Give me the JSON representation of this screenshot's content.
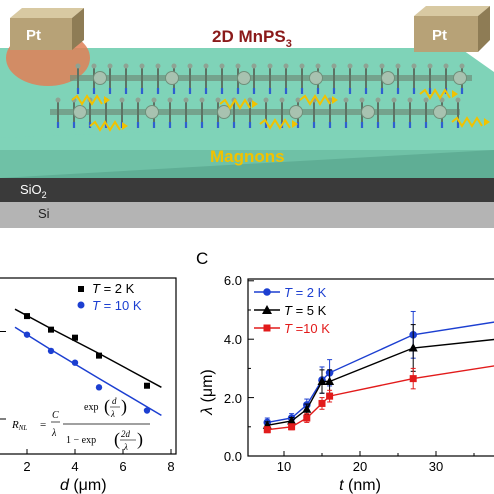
{
  "panel_top": {
    "title_main": "2D MnPS",
    "title_sub": "3",
    "pt_left": "Pt",
    "pt_right": "Pt",
    "magnons": "Magnons",
    "sio2_main": "SiO",
    "sio2_sub": "2",
    "si": "Si"
  },
  "panel_b": {
    "legend": [
      {
        "prefix": "T",
        "text": " =  2 K"
      },
      {
        "prefix": "T",
        "text": " = 10 K"
      }
    ],
    "formula": {
      "lhs": "R",
      "lhs_sub": "NL",
      "num_C": "C",
      "den_lambda": "λ",
      "exp1": "exp",
      "frac1_num": "d",
      "frac1_den": "λ",
      "one_minus": "1 − exp",
      "frac2_num": "2d",
      "frac2_den": "λ",
      "eq": "="
    },
    "x_ticks": [
      "2",
      "4",
      "6",
      "8"
    ],
    "xlabel_var": "d",
    "xlabel_unit": " (μm)"
  },
  "panel_c": {
    "label": "C",
    "ylabel_var": "λ",
    "ylabel_unit": " (μm)",
    "xlabel_var": "t",
    "xlabel_unit": " (nm)"
  },
  "colors": {
    "black": "#000000",
    "blue": "#1c3fd1",
    "red": "#e21b1b",
    "title": "#8b1a1a",
    "magnons": "#f2c200",
    "substrate_green": "#7fd3b8",
    "sio2": "#3a3a3a",
    "si": "#b4b4b4",
    "pt": "#b7a277"
  },
  "chart_data": [
    {
      "type": "scatter",
      "panel": "B",
      "xlabel": "d (μm)",
      "ylabel": "",
      "xlim": [
        1,
        8.3
      ],
      "ylim_log": [
        -0.4,
        1.6
      ],
      "x_ticks": [
        2,
        4,
        6,
        8
      ],
      "series": [
        {
          "name": "T = 2 K",
          "color": "#000000",
          "marker": "square",
          "x": [
            2,
            3,
            4,
            5,
            7
          ],
          "y": [
            15,
            10.5,
            8.5,
            5.3,
            2.4
          ],
          "fit": [
            [
              1.5,
              18.0
            ],
            [
              3,
              10.8
            ],
            [
              5,
              5.6
            ],
            [
              7.6,
              2.3
            ]
          ]
        },
        {
          "name": "T = 10 K",
          "color": "#1c3fd1",
          "marker": "circle",
          "x": [
            2,
            3,
            4,
            5,
            7
          ],
          "y": [
            9.2,
            6.0,
            4.4,
            2.3,
            1.25
          ],
          "fit": [
            [
              1.5,
              11.2
            ],
            [
              3,
              6.2
            ],
            [
              5,
              2.9
            ],
            [
              7.6,
              1.1
            ]
          ]
        }
      ]
    },
    {
      "type": "line",
      "panel": "C",
      "xlabel": "t (nm)",
      "ylabel": "λ (μm)",
      "xlim": [
        5,
        38
      ],
      "ylim": [
        0,
        6
      ],
      "x_ticks": [
        10,
        20,
        30
      ],
      "y_ticks": [
        "0.0",
        "2.0",
        "4.0",
        "6.0"
      ],
      "series": [
        {
          "name": "T = 2 K",
          "color": "#1c3fd1",
          "marker": "circle",
          "x": [
            7.8,
            11,
            13,
            15,
            16,
            27
          ],
          "y": [
            1.15,
            1.3,
            1.75,
            2.6,
            2.85,
            4.15
          ],
          "err": [
            0.15,
            0.15,
            0.2,
            0.45,
            0.45,
            0.8
          ],
          "tail": [
            38,
            4.6
          ]
        },
        {
          "name": "T = 5 K",
          "color": "#000000",
          "marker": "triangle",
          "x": [
            7.8,
            11,
            13,
            15,
            16,
            27
          ],
          "y": [
            1.05,
            1.2,
            1.6,
            2.55,
            2.55,
            3.7
          ],
          "err": [
            0.12,
            0.12,
            0.18,
            0.4,
            0.4,
            0.8
          ],
          "tail": [
            38,
            4.0
          ]
        },
        {
          "name": "T = 10 K",
          "color": "#e21b1b",
          "marker": "square",
          "x": [
            7.8,
            11,
            13,
            15,
            16,
            27
          ],
          "y": [
            0.9,
            1.0,
            1.3,
            1.8,
            2.05,
            2.65
          ],
          "err": [
            0.1,
            0.1,
            0.15,
            0.2,
            0.2,
            0.35
          ],
          "tail": [
            38,
            3.1
          ]
        }
      ]
    }
  ]
}
